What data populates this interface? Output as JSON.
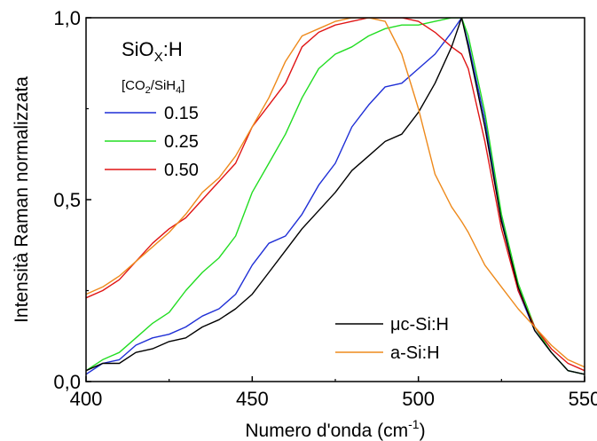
{
  "chart_data": {
    "type": "line",
    "xlabel_main": "Numero d'onda (cm",
    "xlabel_sup": "-1",
    "xlabel_close": ")",
    "ylabel": "Intensità Raman normalizzata",
    "xlim": [
      400,
      550
    ],
    "ylim": [
      0,
      1
    ],
    "x_ticks": [
      {
        "value": 400,
        "label": "400"
      },
      {
        "value": 450,
        "label": "450"
      },
      {
        "value": 500,
        "label": "500"
      },
      {
        "value": 550,
        "label": "550"
      }
    ],
    "y_ticks": [
      {
        "value": 0.0,
        "label": "0,0"
      },
      {
        "value": 0.5,
        "label": "0,5"
      },
      {
        "value": 1.0,
        "label": "1,0"
      }
    ],
    "legend_group_title": {
      "base": "SiO",
      "sub": "X",
      "rest": ":H"
    },
    "legend_group_subtitle": {
      "open": "[CO",
      "sub1": "2",
      "mid": "/SiH",
      "sub2": "4",
      "close": "]"
    },
    "x": [
      400,
      405,
      410,
      415,
      420,
      425,
      430,
      435,
      440,
      445,
      450,
      455,
      460,
      465,
      470,
      475,
      480,
      485,
      490,
      495,
      500,
      505,
      510,
      513,
      515,
      520,
      525,
      530,
      535,
      540,
      545,
      550
    ],
    "series": [
      {
        "name": "0.15",
        "color": "#1f2fd6",
        "group": "sio",
        "values": [
          0.02,
          0.05,
          0.06,
          0.1,
          0.12,
          0.13,
          0.15,
          0.18,
          0.2,
          0.24,
          0.32,
          0.38,
          0.4,
          0.46,
          0.54,
          0.6,
          0.7,
          0.76,
          0.81,
          0.82,
          0.86,
          0.9,
          0.96,
          1.0,
          0.93,
          0.72,
          0.45,
          0.25,
          0.14,
          0.08,
          0.03,
          0.02
        ]
      },
      {
        "name": "0.25",
        "color": "#22dd22",
        "group": "sio",
        "values": [
          0.03,
          0.06,
          0.08,
          0.12,
          0.16,
          0.19,
          0.25,
          0.3,
          0.34,
          0.4,
          0.52,
          0.6,
          0.68,
          0.78,
          0.86,
          0.9,
          0.92,
          0.95,
          0.97,
          0.98,
          0.98,
          0.99,
          1.0,
          1.0,
          0.95,
          0.74,
          0.46,
          0.27,
          0.15,
          0.08,
          0.03,
          0.02
        ]
      },
      {
        "name": "0.50",
        "color": "#e01515",
        "group": "sio",
        "values": [
          0.23,
          0.25,
          0.28,
          0.33,
          0.38,
          0.42,
          0.45,
          0.5,
          0.55,
          0.6,
          0.7,
          0.76,
          0.82,
          0.92,
          0.96,
          0.98,
          0.99,
          1.0,
          1.0,
          1.0,
          0.99,
          0.96,
          0.92,
          0.9,
          0.86,
          0.66,
          0.42,
          0.25,
          0.15,
          0.09,
          0.05,
          0.03
        ]
      },
      {
        "name": "μc-Si:H",
        "color": "#000000",
        "group": "ref",
        "values": [
          0.03,
          0.05,
          0.05,
          0.08,
          0.09,
          0.11,
          0.12,
          0.15,
          0.17,
          0.2,
          0.24,
          0.3,
          0.36,
          0.42,
          0.47,
          0.52,
          0.58,
          0.62,
          0.66,
          0.68,
          0.74,
          0.82,
          0.92,
          1.0,
          0.92,
          0.7,
          0.44,
          0.26,
          0.14,
          0.08,
          0.03,
          0.02
        ]
      },
      {
        "name": "a-Si:H",
        "color": "#ee8a1c",
        "group": "ref",
        "values": [
          0.24,
          0.26,
          0.29,
          0.33,
          0.37,
          0.41,
          0.46,
          0.52,
          0.56,
          0.62,
          0.7,
          0.78,
          0.88,
          0.95,
          0.97,
          0.99,
          1.0,
          1.0,
          0.99,
          0.9,
          0.75,
          0.57,
          0.48,
          0.44,
          0.41,
          0.32,
          0.26,
          0.2,
          0.15,
          0.1,
          0.06,
          0.04
        ]
      }
    ]
  }
}
